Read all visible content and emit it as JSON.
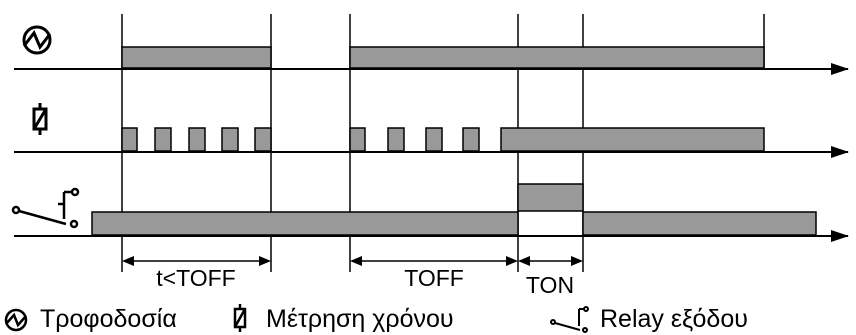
{
  "intervals": [
    {
      "label": "t<TOFF"
    },
    {
      "label": "TOFF"
    },
    {
      "label": "TON"
    }
  ],
  "legend": [
    {
      "icon": "power-supply-icon",
      "label": "Τροφοδοσία"
    },
    {
      "icon": "timer-icon",
      "label": "Μέτρηση χρόνου"
    },
    {
      "icon": "relay-contact-icon",
      "label": "Relay εξόδου"
    }
  ],
  "colors": {
    "pulse_fill": "#999999",
    "line": "#000000"
  }
}
